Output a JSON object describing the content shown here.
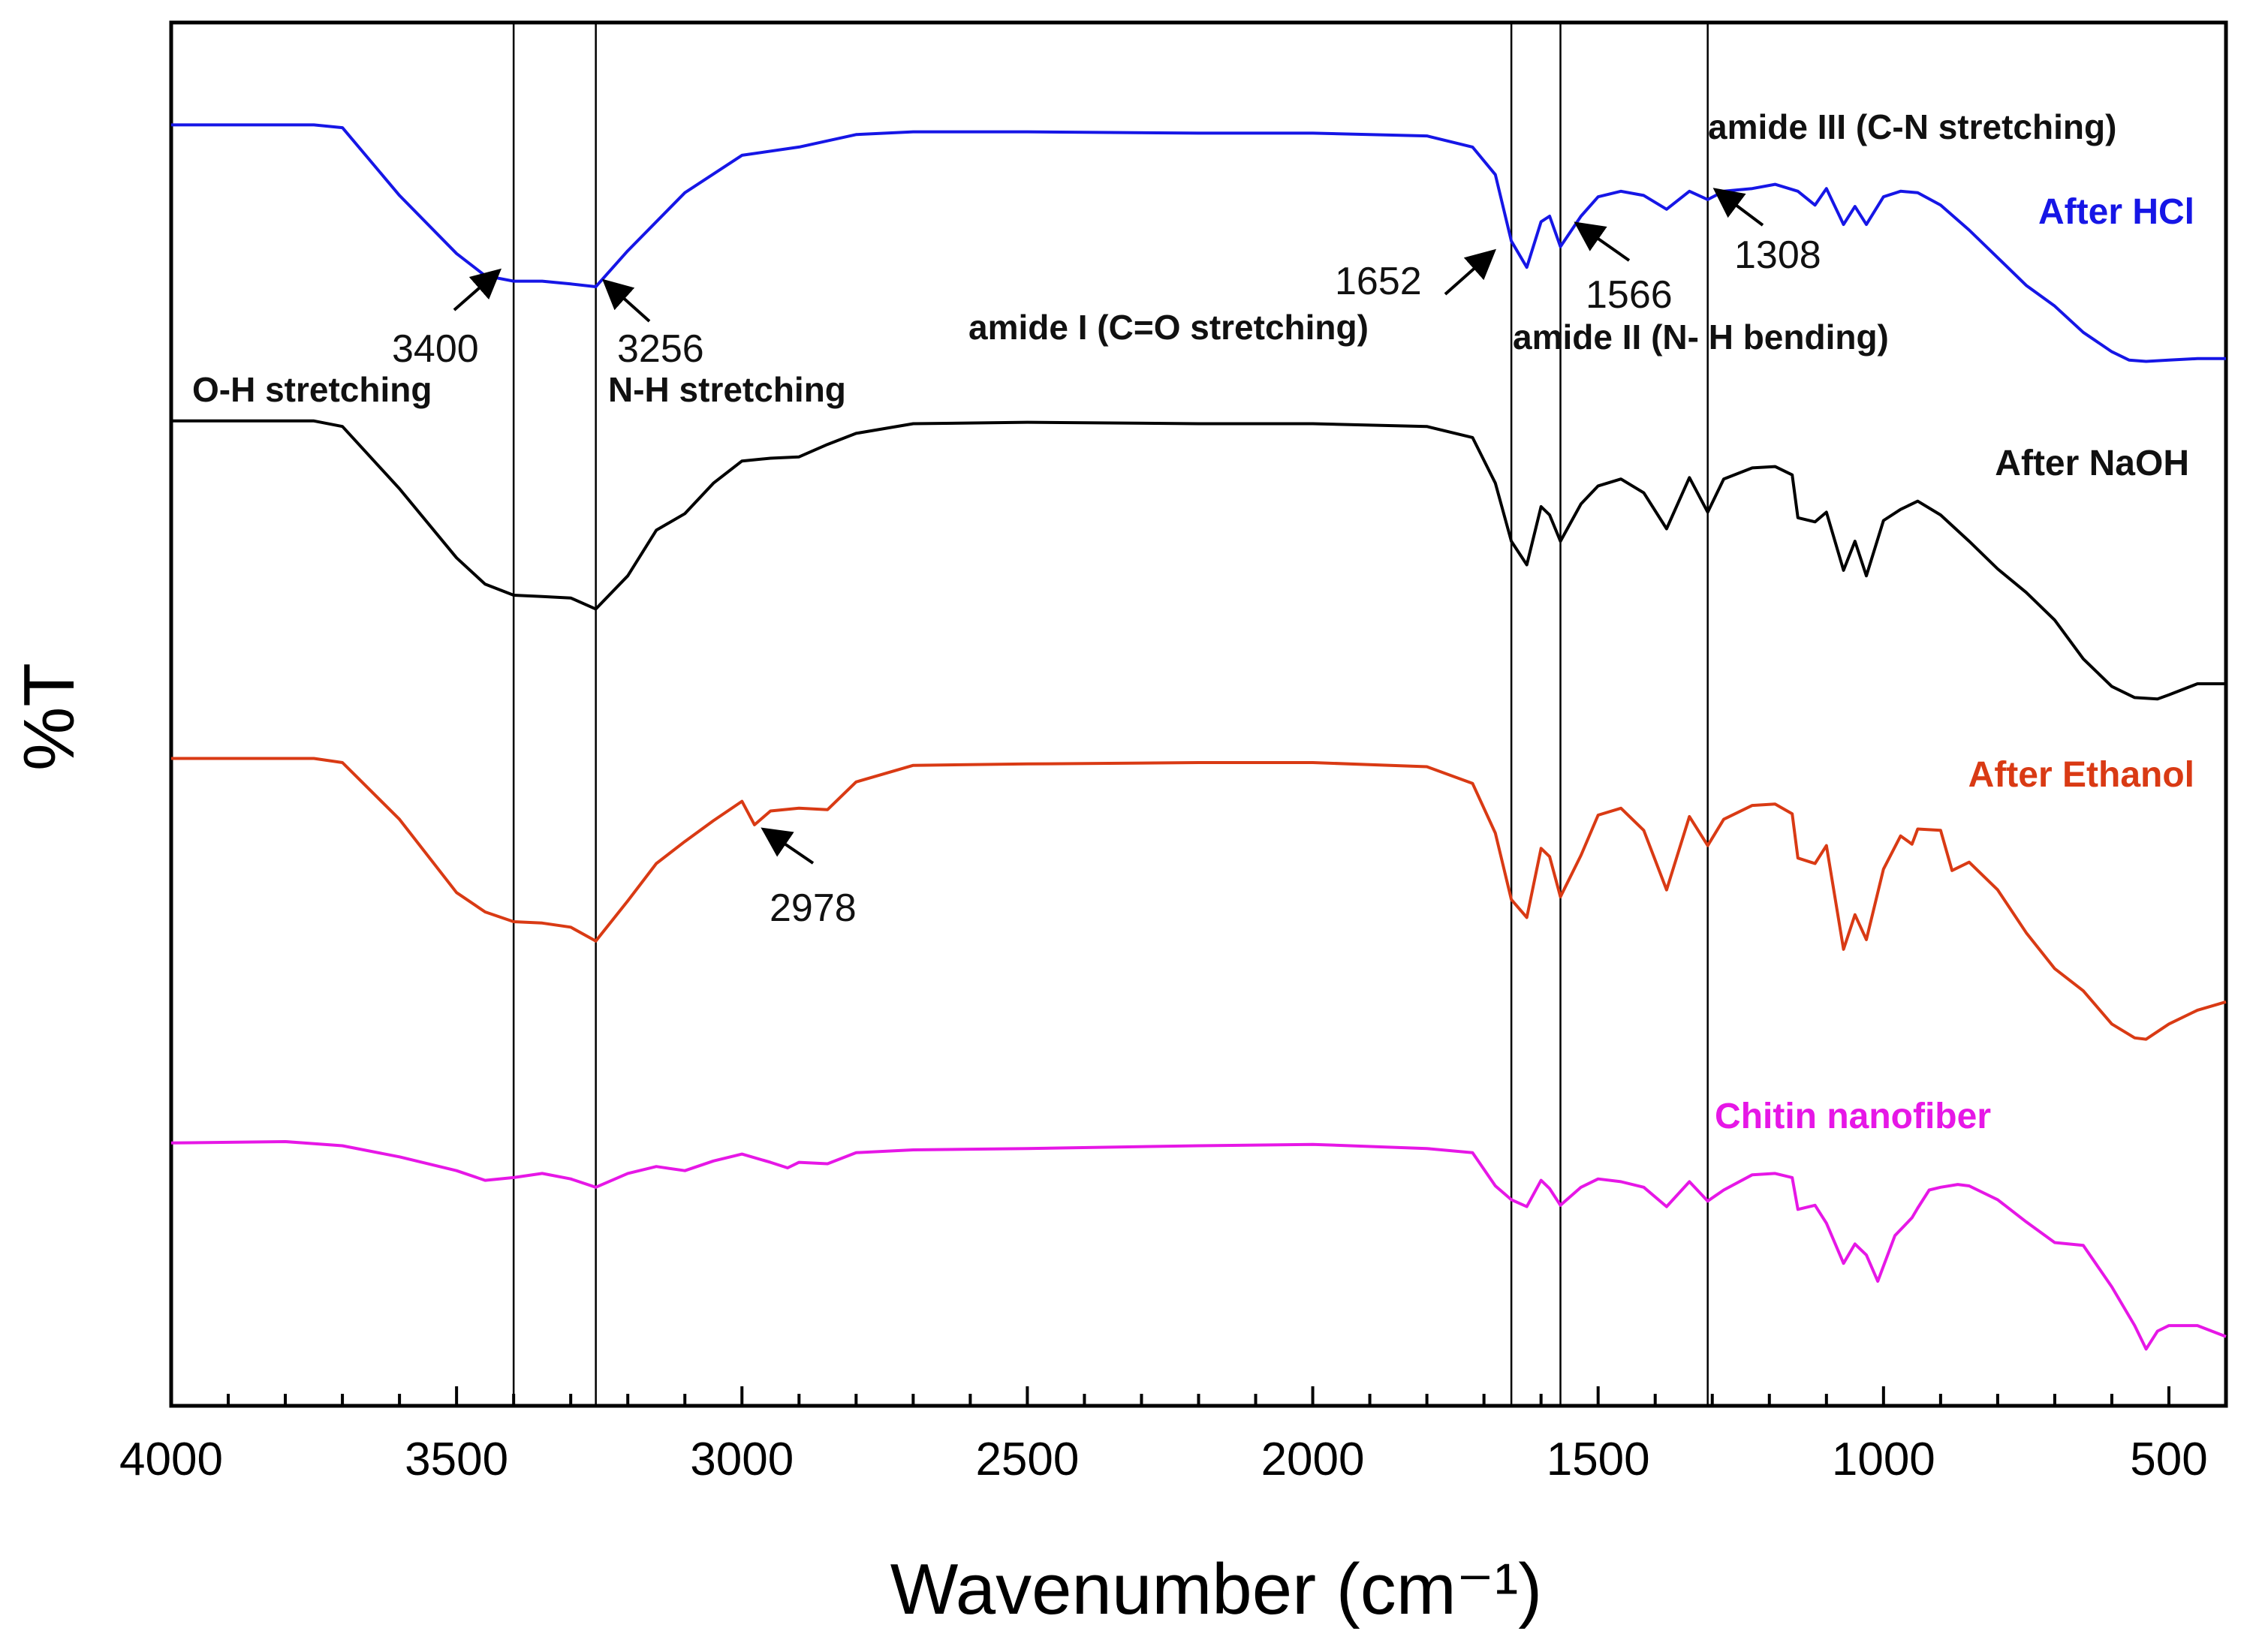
{
  "chart_data": {
    "type": "line",
    "title": "",
    "xlabel": "Wavenumber (cm⁻¹)",
    "ylabel": "%T",
    "xlim": [
      4000,
      400
    ],
    "x_ticks": [
      4000,
      3500,
      3000,
      2500,
      2000,
      1500,
      1000,
      500
    ],
    "x_tick_labels": [
      "4000",
      "3500",
      "3000",
      "2500",
      "2000",
      "1500",
      "1000",
      "500"
    ],
    "y_units": "%T offset (relative)",
    "ylim": [
      0,
      100
    ],
    "grid": false,
    "legend": "inline labels at right",
    "vertical_lines": [
      3400,
      3256,
      1652,
      1566,
      1308
    ],
    "series": [
      {
        "name": "After HCl",
        "label": "After HCl",
        "color": "#1616e6",
        "points": [
          [
            4000,
            92.6
          ],
          [
            3750,
            92.6
          ],
          [
            3700,
            92.4
          ],
          [
            3600,
            87.5
          ],
          [
            3500,
            83.3
          ],
          [
            3450,
            81.7
          ],
          [
            3400,
            81.3
          ],
          [
            3350,
            81.3
          ],
          [
            3300,
            81.1
          ],
          [
            3256,
            80.9
          ],
          [
            3200,
            83.5
          ],
          [
            3100,
            87.7
          ],
          [
            3000,
            90.4
          ],
          [
            2900,
            91.0
          ],
          [
            2800,
            91.9
          ],
          [
            2700,
            92.1
          ],
          [
            2500,
            92.1
          ],
          [
            2200,
            92.0
          ],
          [
            2000,
            92.0
          ],
          [
            1800,
            91.8
          ],
          [
            1720,
            91.0
          ],
          [
            1680,
            89.0
          ],
          [
            1652,
            84.2
          ],
          [
            1625,
            82.3
          ],
          [
            1600,
            85.6
          ],
          [
            1585,
            86.0
          ],
          [
            1566,
            83.8
          ],
          [
            1530,
            86.0
          ],
          [
            1500,
            87.4
          ],
          [
            1460,
            87.8
          ],
          [
            1420,
            87.5
          ],
          [
            1380,
            86.5
          ],
          [
            1340,
            87.8
          ],
          [
            1308,
            87.2
          ],
          [
            1280,
            87.8
          ],
          [
            1230,
            88.0
          ],
          [
            1190,
            88.3
          ],
          [
            1150,
            87.8
          ],
          [
            1120,
            86.8
          ],
          [
            1100,
            88.0
          ],
          [
            1070,
            85.4
          ],
          [
            1050,
            86.7
          ],
          [
            1030,
            85.4
          ],
          [
            1000,
            87.4
          ],
          [
            970,
            87.8
          ],
          [
            940,
            87.7
          ],
          [
            900,
            86.8
          ],
          [
            850,
            85.0
          ],
          [
            800,
            83.0
          ],
          [
            750,
            81.0
          ],
          [
            700,
            79.5
          ],
          [
            650,
            77.6
          ],
          [
            600,
            76.2
          ],
          [
            570,
            75.6
          ],
          [
            540,
            75.5
          ],
          [
            500,
            75.6
          ],
          [
            450,
            75.7
          ],
          [
            400,
            75.7
          ]
        ]
      },
      {
        "name": "After NaOH",
        "label": "After NaOH",
        "color": "#000000",
        "points": [
          [
            4000,
            71.2
          ],
          [
            3750,
            71.2
          ],
          [
            3700,
            70.8
          ],
          [
            3600,
            66.3
          ],
          [
            3500,
            61.3
          ],
          [
            3450,
            59.4
          ],
          [
            3400,
            58.6
          ],
          [
            3350,
            58.5
          ],
          [
            3300,
            58.4
          ],
          [
            3256,
            57.6
          ],
          [
            3200,
            60.0
          ],
          [
            3150,
            63.3
          ],
          [
            3100,
            64.5
          ],
          [
            3050,
            66.7
          ],
          [
            3000,
            68.3
          ],
          [
            2950,
            68.5
          ],
          [
            2900,
            68.6
          ],
          [
            2850,
            69.5
          ],
          [
            2800,
            70.3
          ],
          [
            2700,
            71.0
          ],
          [
            2500,
            71.1
          ],
          [
            2200,
            71.0
          ],
          [
            2000,
            71.0
          ],
          [
            1800,
            70.8
          ],
          [
            1720,
            70.0
          ],
          [
            1680,
            66.7
          ],
          [
            1652,
            62.5
          ],
          [
            1625,
            60.8
          ],
          [
            1600,
            65.0
          ],
          [
            1585,
            64.4
          ],
          [
            1566,
            62.5
          ],
          [
            1530,
            65.2
          ],
          [
            1500,
            66.5
          ],
          [
            1460,
            67.0
          ],
          [
            1420,
            66.0
          ],
          [
            1380,
            63.4
          ],
          [
            1340,
            67.1
          ],
          [
            1308,
            64.6
          ],
          [
            1280,
            67.0
          ],
          [
            1230,
            67.8
          ],
          [
            1190,
            67.9
          ],
          [
            1160,
            67.3
          ],
          [
            1150,
            64.2
          ],
          [
            1120,
            63.9
          ],
          [
            1100,
            64.6
          ],
          [
            1070,
            60.4
          ],
          [
            1050,
            62.5
          ],
          [
            1030,
            60.0
          ],
          [
            1000,
            64.0
          ],
          [
            970,
            64.8
          ],
          [
            940,
            65.4
          ],
          [
            900,
            64.4
          ],
          [
            850,
            62.5
          ],
          [
            800,
            60.5
          ],
          [
            750,
            58.8
          ],
          [
            700,
            56.8
          ],
          [
            650,
            54.0
          ],
          [
            600,
            52.0
          ],
          [
            560,
            51.2
          ],
          [
            520,
            51.1
          ],
          [
            500,
            51.4
          ],
          [
            450,
            52.2
          ],
          [
            400,
            52.2
          ]
        ]
      },
      {
        "name": "After Ethanol",
        "label": "After Ethanol",
        "color": "#d93a14",
        "points": [
          [
            4000,
            46.8
          ],
          [
            3750,
            46.8
          ],
          [
            3700,
            46.5
          ],
          [
            3600,
            42.4
          ],
          [
            3500,
            37.1
          ],
          [
            3450,
            35.7
          ],
          [
            3400,
            35.0
          ],
          [
            3350,
            34.9
          ],
          [
            3300,
            34.6
          ],
          [
            3256,
            33.6
          ],
          [
            3200,
            36.5
          ],
          [
            3150,
            39.2
          ],
          [
            3100,
            40.8
          ],
          [
            3050,
            42.3
          ],
          [
            3000,
            43.7
          ],
          [
            2978,
            42.0
          ],
          [
            2950,
            43.0
          ],
          [
            2900,
            43.2
          ],
          [
            2850,
            43.1
          ],
          [
            2800,
            45.1
          ],
          [
            2700,
            46.3
          ],
          [
            2500,
            46.4
          ],
          [
            2200,
            46.5
          ],
          [
            2000,
            46.5
          ],
          [
            1800,
            46.2
          ],
          [
            1720,
            45.0
          ],
          [
            1680,
            41.4
          ],
          [
            1652,
            36.6
          ],
          [
            1625,
            35.3
          ],
          [
            1600,
            40.3
          ],
          [
            1585,
            39.7
          ],
          [
            1566,
            36.8
          ],
          [
            1530,
            39.8
          ],
          [
            1500,
            42.7
          ],
          [
            1460,
            43.2
          ],
          [
            1420,
            41.6
          ],
          [
            1380,
            37.3
          ],
          [
            1340,
            42.6
          ],
          [
            1308,
            40.5
          ],
          [
            1280,
            42.4
          ],
          [
            1230,
            43.4
          ],
          [
            1190,
            43.5
          ],
          [
            1160,
            42.8
          ],
          [
            1150,
            39.6
          ],
          [
            1120,
            39.2
          ],
          [
            1100,
            40.5
          ],
          [
            1070,
            33.0
          ],
          [
            1050,
            35.5
          ],
          [
            1030,
            33.7
          ],
          [
            1000,
            38.8
          ],
          [
            970,
            41.2
          ],
          [
            950,
            40.6
          ],
          [
            940,
            41.7
          ],
          [
            900,
            41.6
          ],
          [
            880,
            38.7
          ],
          [
            850,
            39.3
          ],
          [
            800,
            37.3
          ],
          [
            750,
            34.2
          ],
          [
            700,
            31.6
          ],
          [
            650,
            30.0
          ],
          [
            600,
            27.6
          ],
          [
            560,
            26.6
          ],
          [
            540,
            26.5
          ],
          [
            500,
            27.6
          ],
          [
            450,
            28.6
          ],
          [
            400,
            29.2
          ]
        ]
      },
      {
        "name": "Chitin nanofiber",
        "label": "Chitin nanofiber",
        "color": "#e617e6",
        "points": [
          [
            4000,
            19.0
          ],
          [
            3800,
            19.1
          ],
          [
            3700,
            18.8
          ],
          [
            3600,
            18.0
          ],
          [
            3500,
            17.0
          ],
          [
            3450,
            16.3
          ],
          [
            3400,
            16.5
          ],
          [
            3350,
            16.8
          ],
          [
            3300,
            16.4
          ],
          [
            3256,
            15.8
          ],
          [
            3200,
            16.8
          ],
          [
            3150,
            17.3
          ],
          [
            3100,
            17.0
          ],
          [
            3050,
            17.7
          ],
          [
            3000,
            18.2
          ],
          [
            2950,
            17.6
          ],
          [
            2920,
            17.2
          ],
          [
            2900,
            17.6
          ],
          [
            2850,
            17.5
          ],
          [
            2800,
            18.3
          ],
          [
            2700,
            18.5
          ],
          [
            2500,
            18.6
          ],
          [
            2200,
            18.8
          ],
          [
            2000,
            18.9
          ],
          [
            1800,
            18.6
          ],
          [
            1720,
            18.3
          ],
          [
            1680,
            15.9
          ],
          [
            1652,
            14.9
          ],
          [
            1625,
            14.4
          ],
          [
            1600,
            16.3
          ],
          [
            1585,
            15.7
          ],
          [
            1566,
            14.5
          ],
          [
            1530,
            15.8
          ],
          [
            1500,
            16.4
          ],
          [
            1460,
            16.2
          ],
          [
            1420,
            15.8
          ],
          [
            1380,
            14.4
          ],
          [
            1340,
            16.2
          ],
          [
            1308,
            14.8
          ],
          [
            1280,
            15.6
          ],
          [
            1230,
            16.7
          ],
          [
            1190,
            16.8
          ],
          [
            1160,
            16.5
          ],
          [
            1150,
            14.2
          ],
          [
            1120,
            14.5
          ],
          [
            1100,
            13.2
          ],
          [
            1070,
            10.3
          ],
          [
            1050,
            11.7
          ],
          [
            1030,
            10.9
          ],
          [
            1010,
            9.0
          ],
          [
            980,
            12.3
          ],
          [
            950,
            13.6
          ],
          [
            940,
            14.3
          ],
          [
            920,
            15.6
          ],
          [
            900,
            15.8
          ],
          [
            870,
            16.0
          ],
          [
            850,
            15.9
          ],
          [
            800,
            14.9
          ],
          [
            750,
            13.3
          ],
          [
            700,
            11.8
          ],
          [
            650,
            11.6
          ],
          [
            600,
            8.6
          ],
          [
            560,
            5.8
          ],
          [
            540,
            4.1
          ],
          [
            520,
            5.4
          ],
          [
            500,
            5.8
          ],
          [
            450,
            5.8
          ],
          [
            400,
            5.0
          ]
        ]
      }
    ],
    "annotations": {
      "bands": [
        {
          "id": "oh",
          "text": "O-H stretching"
        },
        {
          "id": "nh",
          "text": "N-H stretching"
        },
        {
          "id": "amide1",
          "text": "amide I (C=O stretching)"
        },
        {
          "id": "amide2",
          "text": "amide II (N- H bending)"
        },
        {
          "id": "amide3",
          "text": "amide III (C-N stretching)"
        }
      ],
      "peaks": [
        {
          "id": "p3400",
          "text": "3400",
          "wavenumber": 3400
        },
        {
          "id": "p3256",
          "text": "3256",
          "wavenumber": 3256
        },
        {
          "id": "p1652",
          "text": "1652",
          "wavenumber": 1652
        },
        {
          "id": "p1566",
          "text": "1566",
          "wavenumber": 1566
        },
        {
          "id": "p1308",
          "text": "1308",
          "wavenumber": 1308
        },
        {
          "id": "p2978",
          "text": "2978",
          "wavenumber": 2978
        }
      ]
    }
  }
}
